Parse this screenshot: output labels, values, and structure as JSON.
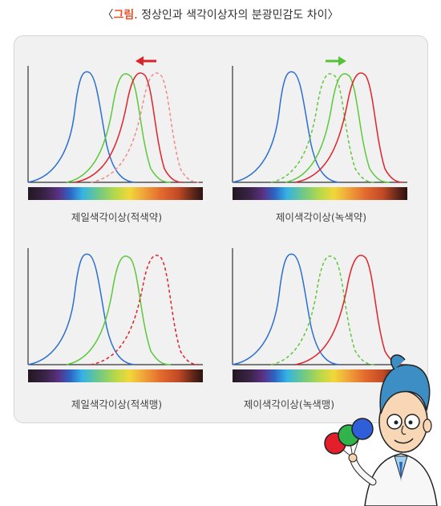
{
  "caption": {
    "bracket_open": "〈",
    "label": "그림",
    "separator": ".",
    "text": " 정상인과 색각이상자의 분광민감도 차이",
    "bracket_close": "〉"
  },
  "colors": {
    "blue": "#2b6fd0",
    "green": "#5cc83a",
    "red": "#e0232a",
    "red_dashed": "#f08a8a",
    "green_dashed": "#5cc83a",
    "arrow_red": "#d9252a",
    "arrow_green": "#55c23a",
    "accent": "#e8542a"
  },
  "panels": [
    {
      "label": "제일색각이상(적색약)",
      "arrow": "left-red"
    },
    {
      "label": "제이색각이상(녹색약)",
      "arrow": "right-green"
    },
    {
      "label": "제일색각이상(적색맹)",
      "arrow": "none"
    },
    {
      "label": "제이색각이상(녹색맹)",
      "arrow": "none"
    }
  ],
  "icons": {
    "arrow_left": "arrow-left-icon",
    "arrow_right": "arrow-right-icon",
    "mascot": "doctor-mascot"
  }
}
